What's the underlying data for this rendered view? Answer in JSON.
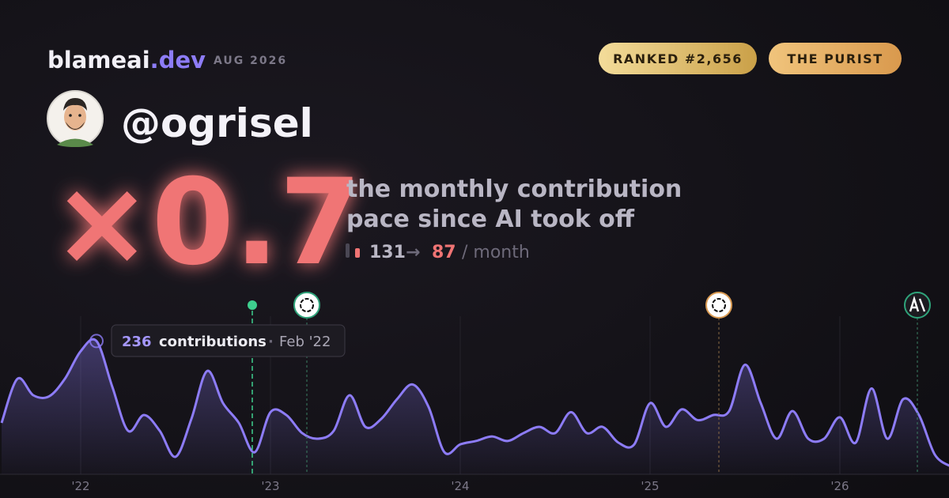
{
  "header": {
    "brand": "blameai",
    "brand_suffix": ".dev",
    "date": "AUG 2026",
    "badges": [
      "RANKED #2,656",
      "THE PURIST"
    ]
  },
  "profile": {
    "handle": "@ogrisel"
  },
  "stat": {
    "multiplier": "×0.7",
    "description": [
      "the monthly contribution",
      "pace since AI took off"
    ],
    "before": 131,
    "arrow": "→",
    "after": 87,
    "unit": "/ month"
  },
  "chart_data": {
    "type": "line",
    "categories": [
      null,
      null,
      null,
      null,
      null,
      "'22",
      null,
      null,
      null,
      null,
      null,
      null,
      null,
      null,
      null,
      null,
      null,
      "'23",
      null,
      null,
      null,
      null,
      null,
      null,
      null,
      null,
      null,
      null,
      null,
      "'24",
      null,
      null,
      null,
      null,
      null,
      null,
      null,
      null,
      null,
      null,
      null,
      "'25",
      null,
      null,
      null,
      null,
      null,
      null,
      null,
      null,
      null,
      null,
      null,
      "'26",
      null,
      null,
      null,
      null,
      null,
      null,
      null
    ],
    "values": [
      91,
      169,
      140,
      138,
      169,
      218,
      236,
      155,
      77,
      105,
      77,
      31,
      98,
      183,
      126,
      91,
      39,
      110,
      105,
      73,
      63,
      77,
      140,
      84,
      98,
      133,
      159,
      119,
      39,
      53,
      59,
      67,
      59,
      73,
      84,
      73,
      110,
      73,
      84,
      56,
      53,
      126,
      84,
      115,
      96,
      105,
      112,
      194,
      126,
      63,
      112,
      63,
      63,
      101,
      56,
      152,
      63,
      133,
      105,
      35,
      14
    ],
    "color": "#8d7cf7",
    "ylim": [
      0,
      280
    ],
    "tooltip": {
      "label": "contributions",
      "separator": "·",
      "date": "Feb '22"
    }
  }
}
